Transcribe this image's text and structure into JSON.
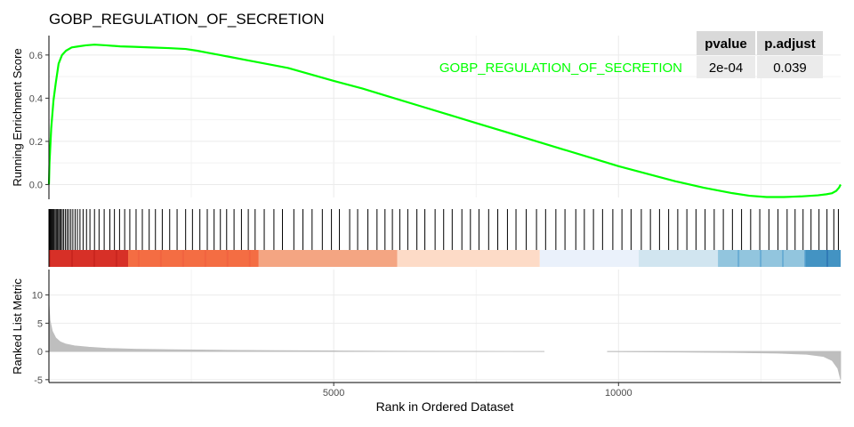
{
  "chart_data": {
    "type": "line",
    "title": "GOBP_REGULATION_OF_SECRETION",
    "xlabel": "Rank in Ordered Dataset",
    "n_genes": 13900,
    "xlim": [
      0,
      13900
    ],
    "x_ticks": [
      5000,
      10000
    ],
    "gene_set": {
      "name": "GOBP_REGULATION_OF_SECRETION",
      "color": "#00ff00"
    },
    "table": {
      "headers": [
        "pvalue",
        "p.adjust"
      ],
      "values": [
        "2e-04",
        "0.039"
      ]
    },
    "enrichment": {
      "ylabel": "Running Enrichment Score",
      "ylim": [
        -0.06,
        0.69
      ],
      "y_ticks": [
        0.0,
        0.2,
        0.4,
        0.6
      ],
      "x": [
        0,
        10,
        40,
        80,
        120,
        170,
        230,
        300,
        400,
        520,
        650,
        800,
        1000,
        1250,
        1500,
        1800,
        2100,
        2400,
        2600,
        2800,
        3000,
        3200,
        3500,
        3800,
        4200,
        4600,
        5000,
        5500,
        6000,
        6500,
        7000,
        7500,
        8000,
        8500,
        9000,
        9500,
        10000,
        10500,
        11000,
        11500,
        12000,
        12300,
        12600,
        12900,
        13200,
        13500,
        13650,
        13750,
        13820,
        13870,
        13900
      ],
      "y": [
        0.0,
        0.1,
        0.26,
        0.39,
        0.47,
        0.56,
        0.6,
        0.62,
        0.635,
        0.64,
        0.645,
        0.648,
        0.645,
        0.64,
        0.638,
        0.635,
        0.632,
        0.628,
        0.62,
        0.61,
        0.6,
        0.59,
        0.575,
        0.56,
        0.54,
        0.51,
        0.48,
        0.445,
        0.405,
        0.365,
        0.325,
        0.285,
        0.245,
        0.205,
        0.165,
        0.125,
        0.085,
        0.05,
        0.015,
        -0.015,
        -0.04,
        -0.052,
        -0.058,
        -0.058,
        -0.055,
        -0.05,
        -0.045,
        -0.04,
        -0.03,
        -0.015,
        0.0
      ]
    },
    "hits": [
      5,
      15,
      30,
      45,
      60,
      75,
      90,
      110,
      130,
      150,
      170,
      190,
      210,
      235,
      260,
      290,
      320,
      350,
      385,
      420,
      460,
      500,
      545,
      600,
      660,
      720,
      800,
      880,
      970,
      1070,
      1150,
      1240,
      1330,
      1420,
      1530,
      1640,
      1760,
      1870,
      1990,
      2120,
      2250,
      2400,
      2520,
      2650,
      2780,
      2900,
      3010,
      3120,
      3250,
      3380,
      3500,
      3620,
      3780,
      3950,
      4100,
      4300,
      4460,
      4620,
      4800,
      4960,
      5100,
      5280,
      5420,
      5600,
      5760,
      5900,
      6030,
      6160,
      6300,
      6460,
      6600,
      6780,
      6930,
      7080,
      7250,
      7400,
      7550,
      7720,
      7880,
      8050,
      8200,
      8380,
      8560,
      8720,
      8900,
      9060,
      9250,
      9400,
      9560,
      9720,
      9900,
      10060,
      10220,
      10400,
      10560,
      10720,
      10880,
      11040,
      11200,
      11360,
      11520,
      11680,
      11840,
      12000,
      12160,
      12320,
      12480,
      12640,
      12800,
      12960,
      13100,
      13240,
      13380,
      13520,
      13660,
      13780,
      13860
    ],
    "ranked_metric": {
      "ylabel": "Ranked List Metric",
      "ylim": [
        -5.5,
        14.5
      ],
      "y_ticks": [
        -5,
        0,
        5,
        10
      ],
      "x": [
        0,
        20,
        60,
        120,
        200,
        300,
        450,
        700,
        1000,
        1500,
        2200,
        3000,
        4000,
        5000,
        6000,
        7000,
        8000,
        9000,
        10000,
        11000,
        12000,
        12800,
        13300,
        13600,
        13750,
        13850,
        13900
      ],
      "y": [
        8.5,
        5.5,
        3.6,
        2.4,
        1.7,
        1.3,
        1.0,
        0.75,
        0.55,
        0.4,
        0.3,
        0.22,
        0.15,
        0.1,
        0.05,
        0.02,
        0.0,
        -0.02,
        -0.05,
        -0.1,
        -0.18,
        -0.3,
        -0.5,
        -0.9,
        -1.6,
        -3.0,
        -5.0
      ]
    },
    "heat_colors": [
      "#b2182b",
      "#d6604d",
      "#f4a582",
      "#fddbc7",
      "#f7f7f7",
      "#d1e5f0",
      "#92c5de",
      "#4393c3",
      "#2166ac"
    ],
    "line_color": "#00ff00",
    "metric_fill": "#bebebe",
    "grid": true
  }
}
